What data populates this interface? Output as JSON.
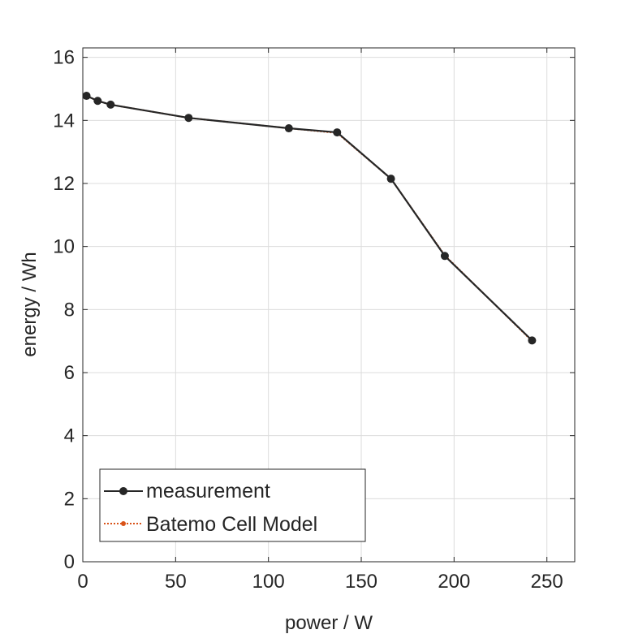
{
  "chart_data": {
    "type": "line",
    "title": "",
    "xlabel": "power / W",
    "ylabel": "energy / Wh",
    "xlim": [
      0,
      265
    ],
    "ylim": [
      0,
      16.3
    ],
    "xticks": [
      0,
      50,
      100,
      150,
      200,
      250
    ],
    "yticks": [
      0,
      2,
      4,
      6,
      8,
      10,
      12,
      14,
      16
    ],
    "grid": true,
    "legend_position": "bottom-left",
    "series": [
      {
        "name": "measurement",
        "color": "#262626",
        "line_style": "solid",
        "marker": "filled-circle",
        "x": [
          2,
          8,
          15,
          57,
          111,
          137,
          166,
          195,
          242
        ],
        "y": [
          14.78,
          14.62,
          14.5,
          14.08,
          13.75,
          13.62,
          12.15,
          9.7,
          7.02
        ]
      },
      {
        "name": "Batemo Cell Model",
        "color": "#D95319",
        "line_style": "dotted",
        "marker": "small-dot",
        "x": [
          2,
          8,
          15,
          57,
          111,
          137,
          166,
          195,
          242
        ],
        "y": [
          14.78,
          14.62,
          14.5,
          14.08,
          13.75,
          13.6,
          12.15,
          9.72,
          7.0
        ]
      }
    ]
  }
}
